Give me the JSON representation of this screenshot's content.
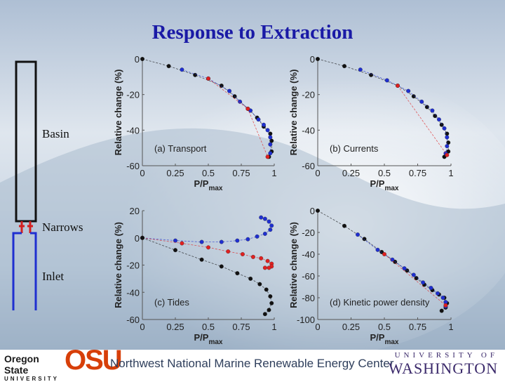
{
  "slide": {
    "title": "Response to Extraction",
    "channel_labels": {
      "basin": "Basin",
      "narrows": "Narrows",
      "inlet": "Inlet"
    },
    "footer": "Northwest National Marine Renewable Energy Center",
    "osu": {
      "name1": "Oregon State",
      "name2": "UNIVERSITY",
      "mark": "OSU"
    },
    "uw": {
      "line1": "UNIVERSITY OF",
      "line2": "WASHINGTON"
    }
  },
  "colors": {
    "title": "#1a1aa6",
    "blue": "#1f2fd0",
    "red": "#e02020",
    "black": "#111111",
    "channel": "#1f2fd0",
    "osu_orange": "#d73f09"
  },
  "chart_data": [
    {
      "id": "a",
      "type": "scatter",
      "panel_label": "(a) Transport",
      "ylabel": "Relative change (%)",
      "xlabel_main": "P/P",
      "xlabel_sub": "max",
      "xlim": [
        0,
        1
      ],
      "ylim": [
        -60,
        0
      ],
      "xticks": [
        "0",
        "0.25",
        "0.5",
        "0.75",
        "1"
      ],
      "yticks": [
        "0",
        "-20",
        "-40",
        "-60"
      ],
      "series": [
        {
          "color": "black",
          "points": [
            [
              0,
              0
            ],
            [
              0.2,
              -4
            ],
            [
              0.4,
              -9
            ],
            [
              0.6,
              -15
            ],
            [
              0.7,
              -21
            ],
            [
              0.8,
              -28
            ],
            [
              0.87,
              -33
            ],
            [
              0.92,
              -38
            ],
            [
              0.97,
              -42
            ],
            [
              0.98,
              -46
            ],
            [
              0.98,
              -52
            ],
            [
              0.96,
              -55
            ]
          ]
        },
        {
          "color": "blue",
          "points": [
            [
              0.3,
              -6
            ],
            [
              0.5,
              -11
            ],
            [
              0.66,
              -18
            ],
            [
              0.74,
              -24
            ],
            [
              0.82,
              -29
            ],
            [
              0.88,
              -34
            ],
            [
              0.92,
              -37
            ],
            [
              0.95,
              -40
            ],
            [
              0.97,
              -44
            ],
            [
              0.97,
              -48
            ],
            [
              0.97,
              -53
            ]
          ]
        },
        {
          "color": "red",
          "points": [
            [
              0.5,
              -11
            ],
            [
              0.8,
              -28
            ],
            [
              0.95,
              -55
            ]
          ]
        }
      ]
    },
    {
      "id": "b",
      "type": "scatter",
      "panel_label": "(b) Currents",
      "ylabel": "Relative change (%)",
      "xlabel_main": "P/P",
      "xlabel_sub": "max",
      "xlim": [
        0,
        1
      ],
      "ylim": [
        -60,
        0
      ],
      "xticks": [
        "0",
        "0.25",
        "0.5",
        "0.75",
        "1"
      ],
      "yticks": [
        "0",
        "-20",
        "-40",
        "-60"
      ],
      "series": [
        {
          "color": "black",
          "points": [
            [
              0,
              0
            ],
            [
              0.2,
              -4
            ],
            [
              0.4,
              -9
            ],
            [
              0.6,
              -15
            ],
            [
              0.72,
              -21
            ],
            [
              0.82,
              -27
            ],
            [
              0.88,
              -32
            ],
            [
              0.93,
              -37
            ],
            [
              0.97,
              -42
            ],
            [
              0.98,
              -47
            ],
            [
              0.98,
              -52
            ],
            [
              0.95,
              -55
            ]
          ]
        },
        {
          "color": "blue",
          "points": [
            [
              0.32,
              -6
            ],
            [
              0.52,
              -12
            ],
            [
              0.68,
              -18
            ],
            [
              0.78,
              -24
            ],
            [
              0.86,
              -29
            ],
            [
              0.91,
              -34
            ],
            [
              0.95,
              -39
            ],
            [
              0.97,
              -44
            ],
            [
              0.97,
              -49
            ],
            [
              0.96,
              -53
            ]
          ]
        },
        {
          "color": "red",
          "points": [
            [
              0.6,
              -15
            ],
            [
              0.97,
              -54
            ]
          ]
        }
      ]
    },
    {
      "id": "c",
      "type": "scatter",
      "panel_label": "(c) Tides",
      "ylabel": "Relative change (%)",
      "xlabel_main": "P/P",
      "xlabel_sub": "max",
      "xlim": [
        0,
        1
      ],
      "ylim": [
        -60,
        20
      ],
      "xticks": [
        "0",
        "0.25",
        "0.5",
        "0.75",
        "1"
      ],
      "yticks": [
        "20",
        "0",
        "-20",
        "-40",
        "-60"
      ],
      "series": [
        {
          "color": "blue",
          "points": [
            [
              0,
              0
            ],
            [
              0.25,
              -2
            ],
            [
              0.45,
              -3
            ],
            [
              0.6,
              -3
            ],
            [
              0.72,
              -2
            ],
            [
              0.8,
              -1
            ],
            [
              0.87,
              1
            ],
            [
              0.93,
              3
            ],
            [
              0.97,
              6
            ],
            [
              0.98,
              9
            ],
            [
              0.96,
              12
            ],
            [
              0.93,
              14
            ],
            [
              0.9,
              15
            ]
          ]
        },
        {
          "color": "red",
          "points": [
            [
              0,
              0
            ],
            [
              0.3,
              -4
            ],
            [
              0.5,
              -7
            ],
            [
              0.65,
              -10
            ],
            [
              0.76,
              -12
            ],
            [
              0.84,
              -14
            ],
            [
              0.9,
              -15
            ],
            [
              0.95,
              -17
            ],
            [
              0.98,
              -19
            ],
            [
              0.98,
              -21
            ],
            [
              0.96,
              -22
            ],
            [
              0.93,
              -22
            ]
          ]
        },
        {
          "color": "black",
          "points": [
            [
              0,
              0
            ],
            [
              0.25,
              -9
            ],
            [
              0.45,
              -16
            ],
            [
              0.6,
              -21
            ],
            [
              0.72,
              -26
            ],
            [
              0.82,
              -30
            ],
            [
              0.89,
              -34
            ],
            [
              0.94,
              -38
            ],
            [
              0.97,
              -43
            ],
            [
              0.98,
              -48
            ],
            [
              0.96,
              -53
            ],
            [
              0.93,
              -56
            ]
          ]
        }
      ]
    },
    {
      "id": "d",
      "type": "scatter",
      "panel_label": "(d) Kinetic power density",
      "ylabel": "Relative change (%)",
      "xlabel_main": "P/P",
      "xlabel_sub": "max",
      "xlim": [
        0,
        1
      ],
      "ylim": [
        -100,
        0
      ],
      "xticks": [
        "0",
        "0.25",
        "0.5",
        "0.75",
        "1"
      ],
      "yticks": [
        "0",
        "-20",
        "-40",
        "-60",
        "-80",
        "-100"
      ],
      "series": [
        {
          "color": "black",
          "points": [
            [
              0,
              0
            ],
            [
              0.2,
              -14
            ],
            [
              0.35,
              -26
            ],
            [
              0.48,
              -38
            ],
            [
              0.58,
              -47
            ],
            [
              0.67,
              -55
            ],
            [
              0.74,
              -62
            ],
            [
              0.8,
              -68
            ],
            [
              0.86,
              -73
            ],
            [
              0.91,
              -77
            ],
            [
              0.95,
              -80
            ],
            [
              0.97,
              -85
            ],
            [
              0.96,
              -89
            ],
            [
              0.93,
              -92
            ]
          ]
        },
        {
          "color": "blue",
          "points": [
            [
              0.3,
              -22
            ],
            [
              0.45,
              -36
            ],
            [
              0.56,
              -45
            ],
            [
              0.65,
              -53
            ],
            [
              0.72,
              -59
            ],
            [
              0.79,
              -66
            ],
            [
              0.85,
              -71
            ],
            [
              0.9,
              -76
            ],
            [
              0.94,
              -80
            ],
            [
              0.96,
              -84
            ],
            [
              0.96,
              -88
            ]
          ]
        },
        {
          "color": "red",
          "points": [
            [
              0.5,
              -40
            ],
            [
              0.96,
              -87
            ]
          ]
        }
      ]
    }
  ]
}
